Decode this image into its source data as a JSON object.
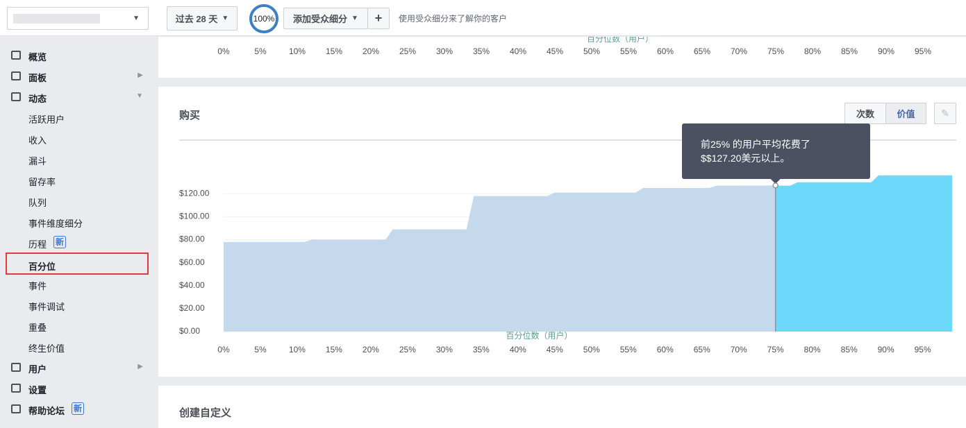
{
  "topbar": {
    "date_range": "过去 28 天",
    "percent": "100%",
    "add_segment": "添加受众细分",
    "plus": "+",
    "hint": "使用受众细分来了解你的客户"
  },
  "sidebar": {
    "items": [
      {
        "label": "概览",
        "group": true
      },
      {
        "label": "面板",
        "group": true,
        "expanded": false
      },
      {
        "label": "动态",
        "group": true,
        "expanded": true
      },
      {
        "label": "活跃用户"
      },
      {
        "label": "收入"
      },
      {
        "label": "漏斗"
      },
      {
        "label": "留存率"
      },
      {
        "label": "队列"
      },
      {
        "label": "事件维度细分"
      },
      {
        "label": "历程",
        "badge": "新"
      },
      {
        "label": "百分位",
        "selected": true
      },
      {
        "label": "事件"
      },
      {
        "label": "事件调试"
      },
      {
        "label": "重叠"
      },
      {
        "label": "终生价值"
      },
      {
        "label": "用户",
        "group": true,
        "expanded": false
      },
      {
        "label": "设置",
        "group": true
      },
      {
        "label": "帮助论坛",
        "group": true,
        "badge": "新"
      }
    ]
  },
  "top_panel": {
    "x_label": "百分位数（用户）",
    "xticks": [
      "0%",
      "5%",
      "10%",
      "15%",
      "20%",
      "25%",
      "30%",
      "35%",
      "40%",
      "45%",
      "50%",
      "55%",
      "60%",
      "65%",
      "70%",
      "75%",
      "80%",
      "85%",
      "90%",
      "95%"
    ]
  },
  "chart_data": {
    "type": "area",
    "title": "购买",
    "toggles": [
      {
        "label": "次数"
      },
      {
        "label": "价值",
        "active": true
      }
    ],
    "x_label": "百分位数（用户）",
    "x": [
      0,
      11,
      12,
      22,
      23,
      33,
      34,
      44,
      45,
      56,
      57,
      66,
      67,
      75,
      76,
      77,
      78,
      88,
      89,
      99
    ],
    "values": [
      78,
      78,
      80,
      80,
      89,
      89,
      118,
      118,
      121,
      121,
      125,
      125,
      127,
      127.2,
      127,
      127,
      130,
      130,
      136,
      136
    ],
    "color": "#c5d9ec",
    "highlight_color": "#6dd9fa",
    "highlight_from": 75,
    "xlim": [
      0,
      99
    ],
    "ylim": [
      0,
      160
    ],
    "xticks": [
      {
        "value": 0,
        "label": "0%"
      },
      {
        "value": 5,
        "label": "5%"
      },
      {
        "value": 10,
        "label": "10%"
      },
      {
        "value": 15,
        "label": "15%"
      },
      {
        "value": 20,
        "label": "20%"
      },
      {
        "value": 25,
        "label": "25%"
      },
      {
        "value": 30,
        "label": "30%"
      },
      {
        "value": 35,
        "label": "35%"
      },
      {
        "value": 40,
        "label": "40%"
      },
      {
        "value": 45,
        "label": "45%"
      },
      {
        "value": 50,
        "label": "50%"
      },
      {
        "value": 55,
        "label": "55%"
      },
      {
        "value": 60,
        "label": "60%"
      },
      {
        "value": 65,
        "label": "65%"
      },
      {
        "value": 70,
        "label": "70%"
      },
      {
        "value": 75,
        "label": "75%"
      },
      {
        "value": 80,
        "label": "80%"
      },
      {
        "value": 85,
        "label": "85%"
      },
      {
        "value": 90,
        "label": "90%"
      },
      {
        "value": 95,
        "label": "95%"
      }
    ],
    "yticks": [
      {
        "value": 0,
        "label": "$0.00"
      },
      {
        "value": 20,
        "label": "$20.00"
      },
      {
        "value": 40,
        "label": "$40.00"
      },
      {
        "value": 60,
        "label": "$60.00"
      },
      {
        "value": 80,
        "label": "$80.00"
      },
      {
        "value": 100,
        "label": "$100.00"
      },
      {
        "value": 120,
        "label": "$120.00"
      }
    ],
    "grid": true,
    "tooltip": {
      "x": 75,
      "value": 127.2,
      "lines": [
        "前25% 的用户平均花费了",
        "$$127.20美元以上。"
      ]
    }
  },
  "bottom_panel": {
    "title": "创建自定义"
  }
}
